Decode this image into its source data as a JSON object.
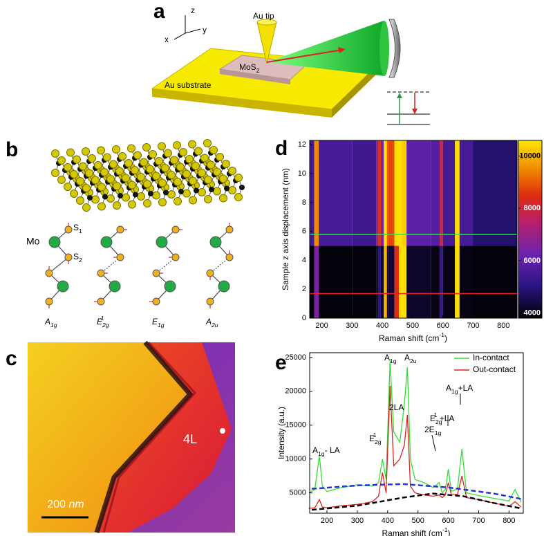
{
  "panel_labels": [
    "a",
    "b",
    "c",
    "d",
    "e"
  ],
  "panel_a": {
    "axes": [
      "z",
      "y",
      "x"
    ],
    "tip": "Au tip",
    "sample": [
      {
        "text": "MoS"
      },
      {
        "sub": "2"
      }
    ],
    "substrate": "Au substrate"
  },
  "panel_b": {
    "mo": "Mo",
    "s1": [
      {
        "text": "S"
      },
      {
        "sub": "1"
      }
    ],
    "s2": [
      {
        "text": "S"
      },
      {
        "sub": "2"
      }
    ],
    "modes": [
      [
        {
          "text": "A"
        },
        {
          "sub": "1g"
        }
      ],
      [
        {
          "text": "E"
        },
        {
          "sub": "2g"
        },
        {
          "sup": "1"
        }
      ],
      [
        {
          "text": "E"
        },
        {
          "sub": "1g"
        }
      ],
      [
        {
          "text": "A"
        },
        {
          "sub": "2u"
        }
      ]
    ]
  },
  "panel_c": {
    "layer": "4L",
    "scale_value": "200",
    "scale_unit": "nm"
  },
  "chart_data": [
    {
      "type": "heatmap",
      "ylabel": "Sample z axis displacement  (nm)",
      "xlabel": [
        {
          "text": "Raman shift  (cm"
        },
        {
          "sup": "-1"
        },
        {
          "text": ")"
        }
      ],
      "xlim": [
        160,
        845
      ],
      "ylim": [
        0,
        12.3
      ],
      "xticks": [
        200,
        300,
        400,
        500,
        600,
        700,
        800
      ],
      "yticks": [
        0,
        2,
        4,
        6,
        8,
        10,
        12
      ],
      "xbins": [
        160,
        175,
        190,
        300,
        380,
        385,
        395,
        405,
        415,
        420,
        440,
        455,
        465,
        480,
        560,
        590,
        600,
        640,
        655,
        700,
        845
      ],
      "ybins": [
        0,
        5,
        12.3
      ],
      "z": [
        [
          3900,
          6500,
          3900,
          3900,
          3900,
          5000,
          4200,
          10000,
          4500,
          4300,
          8500,
          10500,
          10500,
          4200,
          4000,
          5200,
          4000,
          10500,
          4000,
          3900
        ],
        [
          5500,
          9500,
          5600,
          5400,
          6500,
          8500,
          6500,
          10500,
          9000,
          8800,
          10500,
          10500,
          10300,
          6000,
          5800,
          8000,
          5500,
          10500,
          5500,
          4800
        ]
      ],
      "colorscale": [
        [
          3800,
          "#000000"
        ],
        [
          5000,
          "#2a1480"
        ],
        [
          6200,
          "#6a22b0"
        ],
        [
          7500,
          "#b8206a"
        ],
        [
          8500,
          "#e02c10"
        ],
        [
          9500,
          "#f08a00"
        ],
        [
          10600,
          "#ffe600"
        ]
      ],
      "clim": [
        3800,
        10600
      ],
      "cticks": [
        4000,
        6000,
        8000,
        10000
      ],
      "hlines": [
        {
          "value": 5.8,
          "color": "#33dd55"
        },
        {
          "value": 1.7,
          "color": "#ee2222"
        }
      ]
    },
    {
      "type": "line",
      "ylabel": "Intensity (a.u.)",
      "xlabel": [
        {
          "text": "Raman shift  (cm"
        },
        {
          "sup": "-1"
        },
        {
          "text": ")"
        }
      ],
      "xlim": [
        143,
        847
      ],
      "ylim": [
        2000,
        25700
      ],
      "xticks": [
        200,
        300,
        400,
        500,
        600,
        700,
        800
      ],
      "yticks": [
        5000,
        10000,
        15000,
        20000,
        25000
      ],
      "legend": "upper right",
      "x": [
        140,
        160,
        175,
        185,
        200,
        250,
        300,
        350,
        370,
        383,
        395,
        408,
        420,
        440,
        455,
        465,
        475,
        490,
        520,
        550,
        570,
        580,
        590,
        600,
        610,
        630,
        645,
        660,
        700,
        750,
        800,
        820,
        840
      ],
      "series": [
        {
          "name": "In-contact",
          "color": "#33dd33",
          "values": [
            5000,
            5500,
            10500,
            6000,
            5200,
            5800,
            6200,
            6000,
            6500,
            10000,
            7000,
            24600,
            14000,
            12500,
            18000,
            23600,
            10000,
            7000,
            6500,
            5800,
            6500,
            5000,
            5500,
            8500,
            5200,
            5600,
            11500,
            5000,
            4600,
            4200,
            3800,
            5500,
            3600
          ]
        },
        {
          "name": "Out-contact",
          "color": "#dd2222",
          "values": [
            2700,
            2800,
            4000,
            2900,
            2800,
            3100,
            3300,
            3700,
            4500,
            8000,
            5000,
            20800,
            9000,
            10000,
            12000,
            16500,
            6000,
            5000,
            4700,
            4500,
            4700,
            4300,
            4700,
            6500,
            4700,
            4800,
            7500,
            4300,
            4000,
            3500,
            3000,
            3700,
            2900
          ]
        }
      ],
      "baselines": [
        {
          "color": "#2233dd",
          "x": [
            150,
            300,
            450,
            600,
            750,
            840
          ],
          "values": [
            5600,
            6100,
            6300,
            5800,
            4900,
            4100
          ]
        },
        {
          "color": "#000000",
          "x": [
            150,
            300,
            450,
            550,
            650,
            750,
            840
          ],
          "values": [
            2500,
            3100,
            4300,
            4900,
            4500,
            3500,
            2700
          ]
        }
      ],
      "annotations": [
        [
          {
            "text": "A"
          },
          {
            "sub": "1g"
          },
          {
            "text": "- LA"
          }
        ],
        [
          {
            "text": "E"
          },
          {
            "sub": "2g"
          },
          {
            "sup": "1"
          }
        ],
        [
          {
            "text": "A"
          },
          {
            "sub": "1g"
          }
        ],
        [
          {
            "text": "A"
          },
          {
            "sub": "2u"
          }
        ],
        [
          {
            "text": "2LA"
          }
        ],
        [
          {
            "text": "2E"
          },
          {
            "sub": "1g"
          }
        ],
        [
          {
            "text": "E"
          },
          {
            "sub": "2g"
          },
          {
            "sup": "1"
          },
          {
            "text": " +LA"
          }
        ],
        [
          {
            "text": "A"
          },
          {
            "sub": "1g"
          },
          {
            "text": "+LA"
          }
        ]
      ]
    }
  ]
}
